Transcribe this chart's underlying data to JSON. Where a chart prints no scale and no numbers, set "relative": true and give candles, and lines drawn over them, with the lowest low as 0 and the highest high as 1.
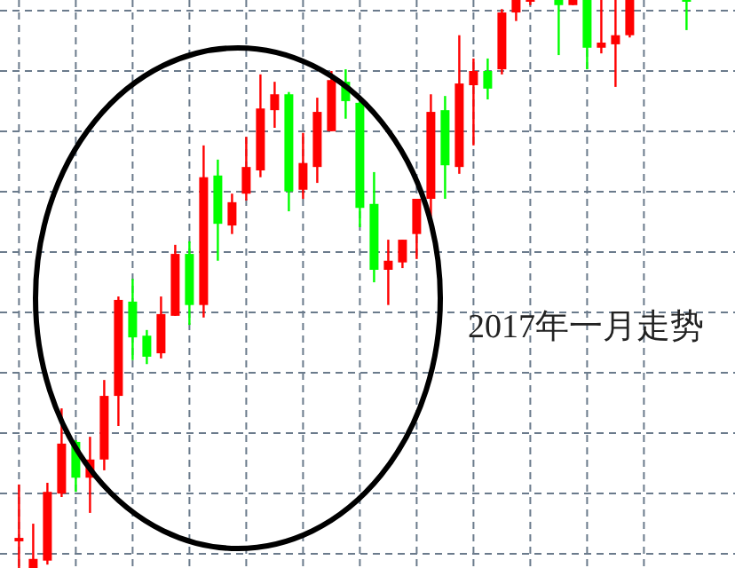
{
  "chart_data": {
    "type": "candlestick",
    "relative": true,
    "grid": true,
    "categories": [
      null,
      null,
      null,
      null,
      null,
      null,
      null,
      null,
      null,
      null,
      null,
      null,
      null,
      null,
      null,
      null,
      null,
      null,
      null,
      null,
      null,
      null,
      null,
      null,
      null,
      null,
      null,
      null,
      null,
      null,
      null,
      null,
      null,
      null,
      null,
      null,
      null,
      null,
      null,
      null,
      null,
      null,
      null,
      null,
      null,
      null,
      null,
      null
    ],
    "ohlc": [
      [
        0.047,
        0.147,
        0,
        0.053
      ],
      [
        0,
        0.078,
        0,
        0.016
      ],
      [
        0.013,
        0.15,
        0.006,
        0.134
      ],
      [
        0.131,
        0.281,
        0.125,
        0.219
      ],
      [
        0.222,
        0.225,
        0.134,
        0.159
      ],
      [
        0.159,
        0.231,
        0.097,
        0.191
      ],
      [
        0.191,
        0.331,
        0.172,
        0.303
      ],
      [
        0.303,
        0.478,
        0.25,
        0.472
      ],
      [
        0.469,
        0.509,
        0.366,
        0.406
      ],
      [
        0.409,
        0.419,
        0.359,
        0.372
      ],
      [
        0.378,
        0.478,
        0.369,
        0.447
      ],
      [
        0.444,
        0.569,
        0.444,
        0.553
      ],
      [
        0.553,
        0.575,
        0.428,
        0.463
      ],
      [
        0.463,
        0.744,
        0.441,
        0.688
      ],
      [
        0.691,
        0.719,
        0.541,
        0.606
      ],
      [
        0.603,
        0.659,
        0.588,
        0.644
      ],
      [
        0.659,
        0.759,
        0.647,
        0.706
      ],
      [
        0.7,
        0.869,
        0.688,
        0.809
      ],
      [
        0.806,
        0.856,
        0.775,
        0.834
      ],
      [
        0.834,
        0.838,
        0.628,
        0.663
      ],
      [
        0.666,
        0.766,
        0.65,
        0.713
      ],
      [
        0.706,
        0.828,
        0.678,
        0.803
      ],
      [
        0.769,
        0.875,
        0.769,
        0.859
      ],
      [
        0.856,
        0.878,
        0.791,
        0.822
      ],
      [
        0.819,
        0.828,
        0.6,
        0.634
      ],
      [
        0.641,
        0.697,
        0.503,
        0.525
      ],
      [
        0.525,
        0.578,
        0.463,
        0.541
      ],
      [
        0.538,
        0.578,
        0.528,
        0.578
      ],
      [
        0.588,
        0.65,
        0.544,
        0.65
      ],
      [
        0.65,
        0.834,
        0.619,
        0.803
      ],
      [
        0.806,
        0.831,
        0.65,
        0.709
      ],
      [
        0.706,
        0.938,
        0.694,
        0.853
      ],
      [
        0.85,
        0.897,
        0.744,
        0.875
      ],
      [
        0.875,
        0.897,
        0.825,
        0.844
      ],
      [
        0.878,
        0.984,
        0.869,
        0.978
      ],
      [
        0.978,
        1,
        0.963,
        1
      ],
      [
        0.997,
        1,
        0.991,
        1
      ],
      null,
      [
        1,
        1,
        0.903,
        0.991
      ],
      [
        0.991,
        1,
        0.991,
        1
      ],
      [
        1,
        1,
        0.878,
        0.916
      ],
      [
        0.916,
        1,
        0.906,
        0.925
      ],
      [
        0.922,
        1,
        0.847,
        0.938
      ],
      [
        0.938,
        1,
        0.934,
        1
      ],
      null,
      null,
      null,
      [
        1,
        1,
        0.947,
        0.998
      ]
    ],
    "colors": [
      "#ff0000",
      "#ff0000",
      "#ff0000",
      "#ff0000",
      "#00ff00",
      "#ff0000",
      "#ff0000",
      "#ff0000",
      "#00ff00",
      "#00ff00",
      "#ff0000",
      "#ff0000",
      "#00ff00",
      "#ff0000",
      "#00ff00",
      "#ff0000",
      "#ff0000",
      "#ff0000",
      "#ff0000",
      "#00ff00",
      "#ff0000",
      "#ff0000",
      "#ff0000",
      "#00ff00",
      "#00ff00",
      "#00ff00",
      "#ff0000",
      "#ff0000",
      "#ff0000",
      "#ff0000",
      "#00ff00",
      "#ff0000",
      "#ff0000",
      "#00ff00",
      "#ff0000",
      "#ff0000",
      "#ff0000",
      null,
      "#00ff00",
      "#ff0000",
      "#00ff00",
      "#ff0000",
      "#ff0000",
      "#ff0000",
      null,
      null,
      null,
      "#00ff00"
    ],
    "annotations": [
      "2017年一月走势"
    ]
  }
}
